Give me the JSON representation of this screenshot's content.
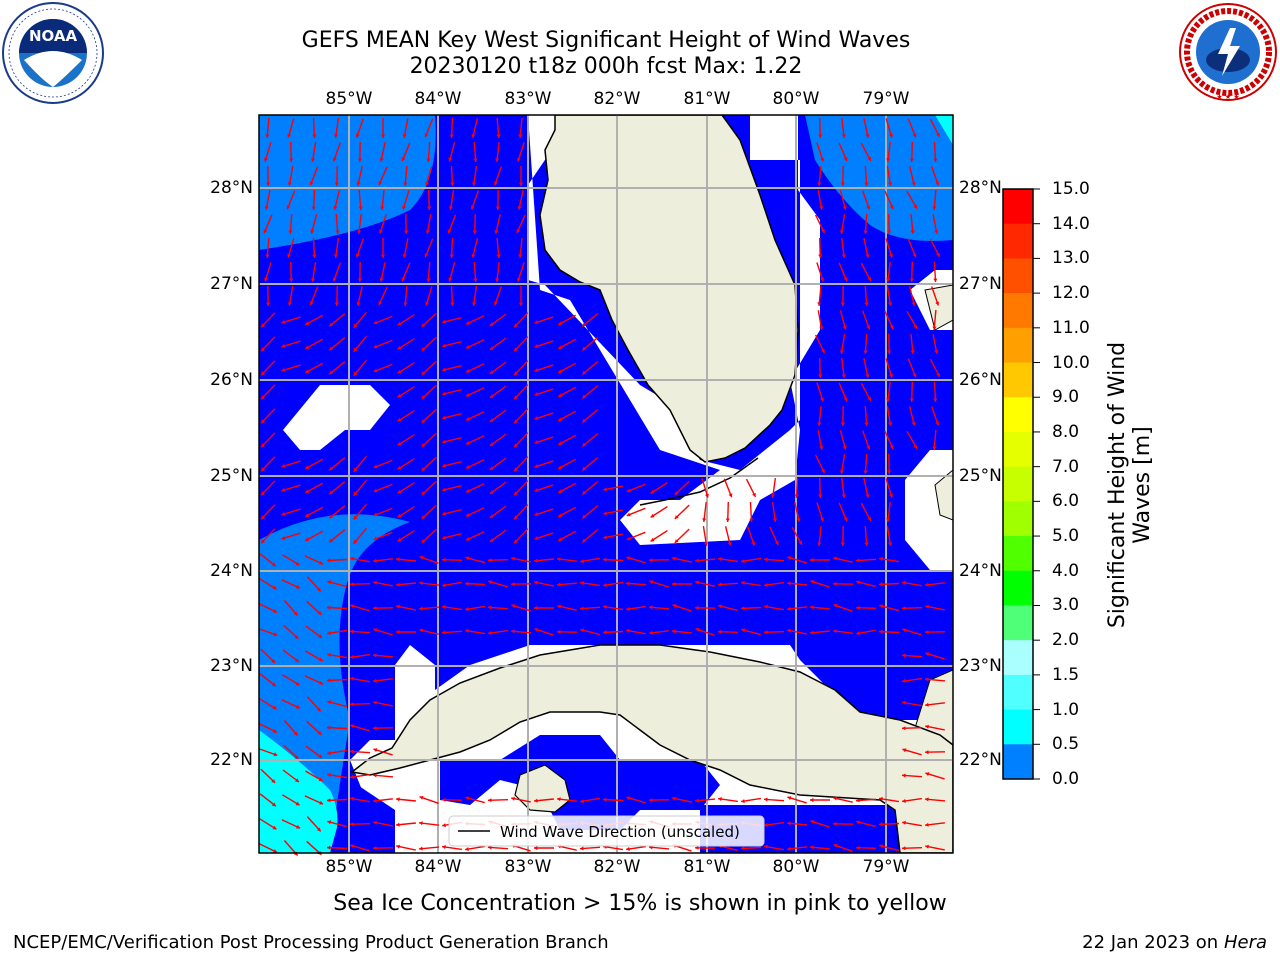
{
  "header": {
    "title_line1": "GEFS MEAN Key West Significant Height of Wind Waves",
    "title_line2": "20230120 t18z 000h fcst   Max: 1.22"
  },
  "logos": {
    "left": "NOAA",
    "left_ring_text": "NATIONAL OCEANIC AND ATMOSPHERIC ADMINISTRATION · U.S. DEPARTMENT OF COMMERCE",
    "right_ring_text": "NATIONAL WEATHER SERVICE"
  },
  "map": {
    "lon_labels": [
      "85°W",
      "84°W",
      "83°W",
      "82°W",
      "81°W",
      "80°W",
      "79°W"
    ],
    "lat_labels": [
      "28°N",
      "27°N",
      "26°N",
      "25°N",
      "24°N",
      "23°N",
      "22°N"
    ],
    "legend_label": "Wind Wave Direction (unscaled)",
    "colors": {
      "ocean_low": "#0000ff",
      "ocean_mid": "#007fff",
      "ocean_high": "#00ffff",
      "land": "#eeeedd",
      "no_data": "#ffffff",
      "arrow": "#ff0000",
      "grid": "#b0b0b0"
    }
  },
  "colorbar": {
    "label": "Significant Height of Wind Waves [m]",
    "ticks": [
      "15.0",
      "14.0",
      "13.0",
      "12.0",
      "11.0",
      "10.0",
      "9.0",
      "8.0",
      "7.0",
      "6.0",
      "5.0",
      "4.0",
      "3.0",
      "2.0",
      "1.5",
      "1.0",
      "0.5",
      "0.0"
    ],
    "colors": [
      "#ff0000",
      "#ff2800",
      "#ff5000",
      "#ff7800",
      "#ffa000",
      "#ffc800",
      "#ffff00",
      "#e6ff00",
      "#c8ff00",
      "#a0ff00",
      "#50ff00",
      "#00ff00",
      "#50ff78",
      "#aaffff",
      "#50ffff",
      "#00ffff",
      "#007fff",
      "#0000ff"
    ]
  },
  "notes": {
    "sea_ice": "Sea Ice Concentration > 15% is shown in pink to yellow"
  },
  "footer": {
    "left": "NCEP/EMC/Verification Post Processing Product Generation Branch",
    "right_prefix": "22 Jan 2023 on ",
    "right_host": "Hera"
  }
}
